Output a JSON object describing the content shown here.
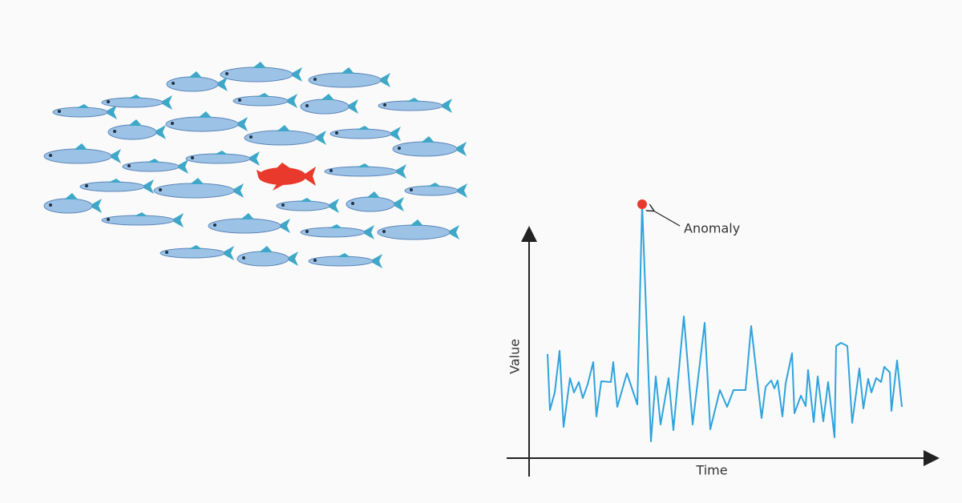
{
  "chart_data": {
    "type": "line",
    "x_label": "Time",
    "y_label": "Value",
    "annotation": "Anomaly",
    "xlim": [
      0,
      500
    ],
    "ylim": [
      0,
      320
    ],
    "color": "#2fa3dc",
    "anomaly_color": "#e8392c",
    "anomaly_index": 18,
    "x": [
      23,
      26,
      32,
      38,
      43,
      51,
      56,
      62,
      67,
      73,
      80,
      84,
      90,
      102,
      105,
      110,
      122,
      135,
      141,
      152,
      158,
      164,
      174,
      180,
      193,
      204,
      219,
      226,
      238,
      247,
      255,
      270,
      277,
      290,
      295,
      302,
      306,
      310,
      316,
      320,
      328,
      331,
      339,
      345,
      348,
      355,
      360,
      367,
      373,
      381,
      383,
      389,
      397,
      403,
      412,
      417,
      423,
      427,
      433,
      439,
      443,
      450,
      452,
      459,
      465
    ],
    "values": [
      128,
      58,
      80,
      132,
      37,
      98,
      80,
      93,
      73,
      90,
      118,
      50,
      94,
      93,
      118,
      62,
      104,
      65,
      315,
      19,
      100,
      40,
      98,
      33,
      175,
      40,
      167,
      34,
      83,
      62,
      83,
      83,
      163,
      48,
      87,
      95,
      85,
      95,
      50,
      91,
      129,
      54,
      76,
      63,
      108,
      43,
      100,
      44,
      93,
      24,
      138,
      142,
      138,
      42,
      110,
      60,
      97,
      80,
      98,
      93,
      112,
      105,
      57,
      120,
      62
    ]
  }
}
